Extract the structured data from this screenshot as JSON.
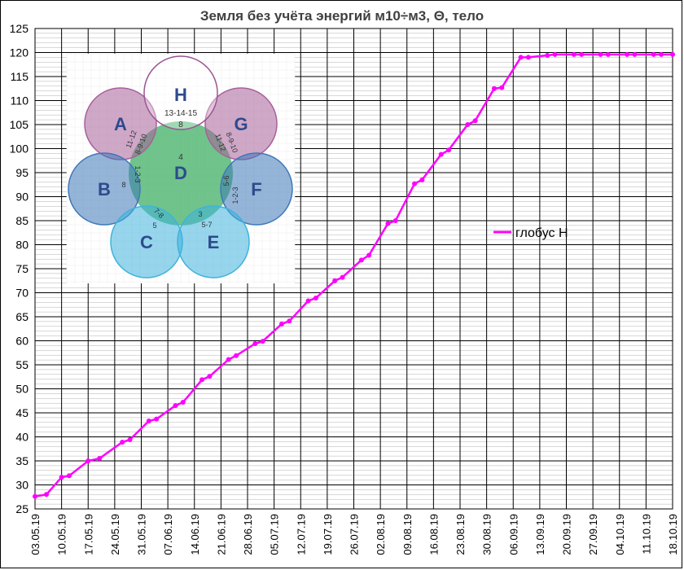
{
  "chart_data": {
    "type": "line",
    "title": "Земля  без учёта  энергий м10÷м3, Θ, тело",
    "xlabel": "",
    "ylabel": "",
    "ylim": [
      25,
      125
    ],
    "yticks": [
      25,
      30,
      35,
      40,
      45,
      50,
      55,
      60,
      65,
      70,
      75,
      80,
      85,
      90,
      95,
      100,
      105,
      110,
      115,
      120,
      125
    ],
    "xlim": [
      "03.05.19",
      "18.10.19"
    ],
    "x_tick_labels": [
      "03.05.19",
      "10.05.19",
      "17.05.19",
      "24.05.19",
      "31.05.19",
      "07.06.19",
      "14.06.19",
      "21.06.19",
      "28.06.19",
      "05.07.19",
      "12.07.19",
      "19.07.19",
      "26.07.19",
      "02.08.19",
      "09.08.19",
      "16.08.19",
      "23.08.19",
      "30.08.19",
      "06.09.19",
      "13.09.19",
      "20.09.19",
      "27.09.19",
      "04.10.19",
      "11.10.19",
      "18.10.19"
    ],
    "grid": true,
    "legend_position": "right-middle",
    "series": [
      {
        "name": "глобус Н",
        "color": "#FF00FF",
        "points": [
          {
            "x": "03.05.19",
            "y": 27.6
          },
          {
            "x": "06.05.19",
            "y": 28.0
          },
          {
            "x": "10.05.19",
            "y": 31.6
          },
          {
            "x": "12.05.19",
            "y": 31.9
          },
          {
            "x": "17.05.19",
            "y": 35.0
          },
          {
            "x": "20.05.19",
            "y": 35.5
          },
          {
            "x": "26.05.19",
            "y": 38.9
          },
          {
            "x": "28.05.19",
            "y": 39.4
          },
          {
            "x": "02.06.19",
            "y": 43.3
          },
          {
            "x": "04.06.19",
            "y": 43.7
          },
          {
            "x": "09.06.19",
            "y": 46.5
          },
          {
            "x": "11.06.19",
            "y": 47.2
          },
          {
            "x": "16.06.19",
            "y": 51.9
          },
          {
            "x": "18.06.19",
            "y": 52.6
          },
          {
            "x": "23.06.19",
            "y": 56.1
          },
          {
            "x": "25.06.19",
            "y": 56.9
          },
          {
            "x": "30.06.19",
            "y": 59.4
          },
          {
            "x": "02.07.19",
            "y": 59.9
          },
          {
            "x": "07.07.19",
            "y": 63.5
          },
          {
            "x": "09.07.19",
            "y": 64.1
          },
          {
            "x": "14.07.19",
            "y": 68.3
          },
          {
            "x": "16.07.19",
            "y": 68.9
          },
          {
            "x": "21.07.19",
            "y": 72.5
          },
          {
            "x": "23.07.19",
            "y": 73.2
          },
          {
            "x": "28.07.19",
            "y": 76.8
          },
          {
            "x": "30.07.19",
            "y": 77.8
          },
          {
            "x": "04.08.19",
            "y": 84.4
          },
          {
            "x": "06.08.19",
            "y": 85.0
          },
          {
            "x": "11.08.19",
            "y": 92.7
          },
          {
            "x": "13.08.19",
            "y": 93.5
          },
          {
            "x": "18.08.19",
            "y": 98.8
          },
          {
            "x": "20.08.19",
            "y": 99.7
          },
          {
            "x": "25.08.19",
            "y": 105.0
          },
          {
            "x": "27.08.19",
            "y": 105.8
          },
          {
            "x": "01.09.19",
            "y": 112.5
          },
          {
            "x": "03.09.19",
            "y": 112.7
          },
          {
            "x": "08.09.19",
            "y": 119.0
          },
          {
            "x": "10.09.19",
            "y": 119.0
          },
          {
            "x": "15.09.19",
            "y": 119.4
          },
          {
            "x": "17.09.19",
            "y": 119.6
          },
          {
            "x": "22.09.19",
            "y": 119.6
          },
          {
            "x": "24.09.19",
            "y": 119.6
          },
          {
            "x": "29.09.19",
            "y": 119.6
          },
          {
            "x": "01.10.19",
            "y": 119.6
          },
          {
            "x": "06.10.19",
            "y": 119.6
          },
          {
            "x": "08.10.19",
            "y": 119.6
          },
          {
            "x": "13.10.19",
            "y": 119.6
          },
          {
            "x": "15.10.19",
            "y": 119.6
          },
          {
            "x": "18.10.19",
            "y": 119.6
          }
        ]
      }
    ]
  },
  "inset": {
    "top_circle": {
      "letter": "Н",
      "label": "13-14-15",
      "sub": "8"
    },
    "center_circle": {
      "letter": "D",
      "label": "4"
    },
    "circles": [
      {
        "letter": "A",
        "color": "#A8609A"
      },
      {
        "letter": "G",
        "color": "#A8609A"
      },
      {
        "letter": "B",
        "color": "#3E78B8"
      },
      {
        "letter": "F",
        "color": "#3E78B8"
      },
      {
        "letter": "C",
        "color": "#3FB3DC"
      },
      {
        "letter": "E",
        "color": "#3FB3DC"
      }
    ],
    "labels": {
      "ad1": "11-12",
      "ad2": "8-9-10",
      "gd1": "8-9-10",
      "gd2": "11-12",
      "bd1": "1-2-3",
      "bd2": "8",
      "fd1": "1-2-3",
      "fd2": "5-6",
      "cd1": "7-8",
      "cd2": "5",
      "ed1": "3",
      "ed2": "5-7"
    }
  }
}
